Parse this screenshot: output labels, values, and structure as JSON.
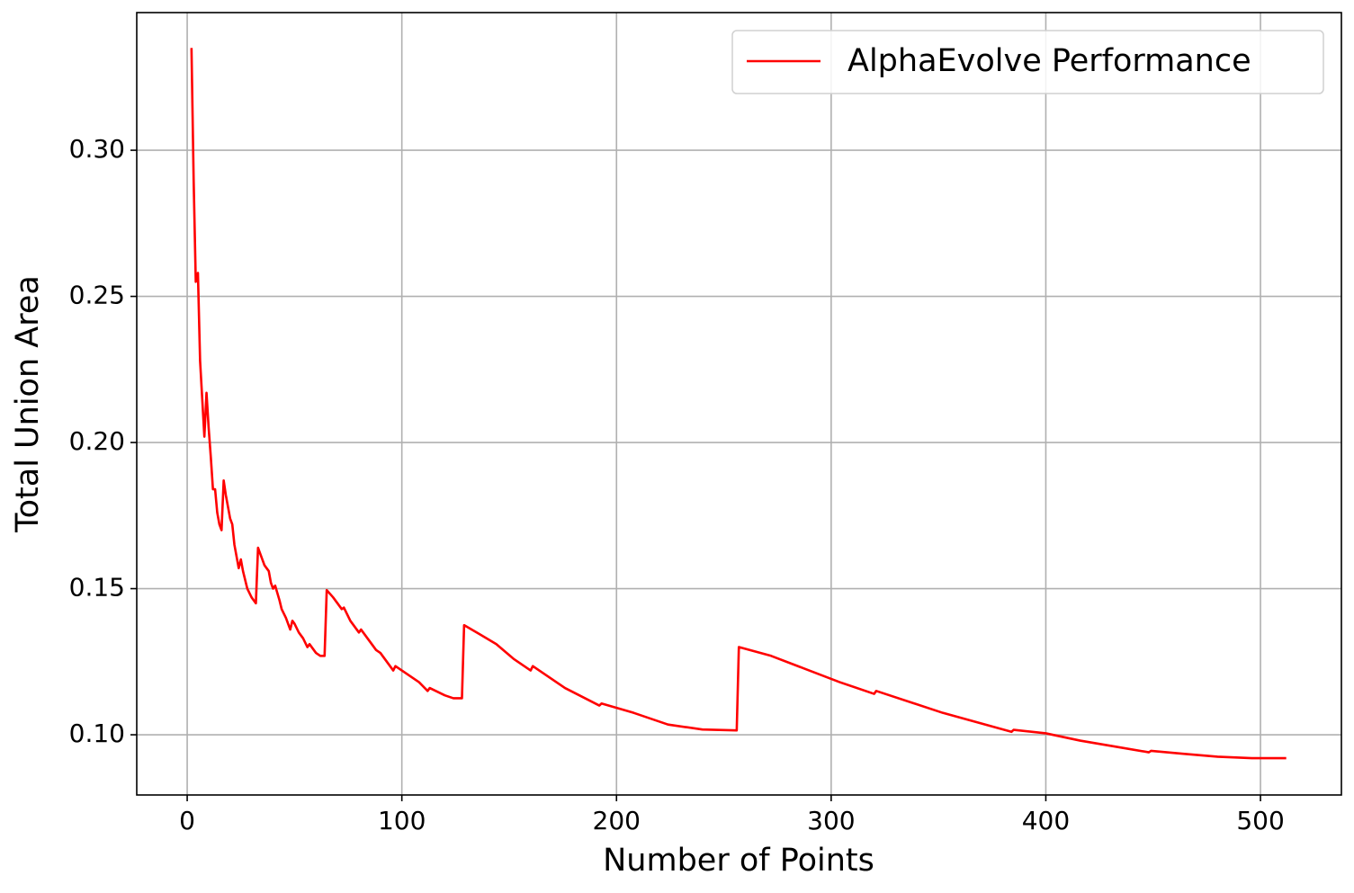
{
  "chart_data": {
    "type": "line",
    "xlabel": "Number of Points",
    "ylabel": "Total Union Area",
    "x": [
      2,
      3,
      4,
      5,
      6,
      7,
      8,
      9,
      10,
      11,
      12,
      13,
      14,
      15,
      16,
      17,
      18,
      20,
      21,
      22,
      24,
      25,
      26,
      28,
      30,
      32,
      33,
      34,
      36,
      38,
      39,
      40,
      41,
      43,
      44,
      46,
      48,
      49,
      50,
      52,
      54,
      56,
      57,
      60,
      62,
      64,
      65,
      68,
      70,
      72,
      73,
      76,
      80,
      81,
      84,
      88,
      90,
      96,
      97,
      100,
      104,
      108,
      112,
      113,
      120,
      124,
      128,
      129,
      136,
      144,
      152,
      160,
      161,
      176,
      192,
      193,
      208,
      224,
      240,
      256,
      257,
      272,
      288,
      304,
      320,
      321,
      352,
      384,
      385,
      400,
      416,
      432,
      448,
      449,
      464,
      480,
      496,
      512
    ],
    "series": [
      {
        "name": "AlphaEvolve Performance",
        "color": "#ff0000",
        "values": [
          0.335,
          0.29,
          0.255,
          0.258,
          0.228,
          0.215,
          0.202,
          0.217,
          0.205,
          0.195,
          0.184,
          0.184,
          0.176,
          0.172,
          0.17,
          0.187,
          0.182,
          0.174,
          0.172,
          0.165,
          0.157,
          0.16,
          0.156,
          0.15,
          0.147,
          0.145,
          0.164,
          0.162,
          0.158,
          0.156,
          0.152,
          0.15,
          0.151,
          0.146,
          0.143,
          0.14,
          0.136,
          0.139,
          0.138,
          0.135,
          0.133,
          0.13,
          0.131,
          0.128,
          0.127,
          0.127,
          0.1495,
          0.147,
          0.145,
          0.143,
          0.1435,
          0.139,
          0.135,
          0.136,
          0.133,
          0.129,
          0.128,
          0.122,
          0.1235,
          0.122,
          0.12,
          0.118,
          0.115,
          0.116,
          0.1135,
          0.1125,
          0.1125,
          0.1375,
          0.1345,
          0.131,
          0.126,
          0.122,
          0.1235,
          0.116,
          0.11,
          0.1107,
          0.1075,
          0.1035,
          0.1018,
          0.1015,
          0.13,
          0.127,
          0.1225,
          0.118,
          0.114,
          0.115,
          0.1075,
          0.101,
          0.1017,
          0.1005,
          0.098,
          0.096,
          0.094,
          0.0945,
          0.0935,
          0.0925,
          0.092,
          0.092
        ]
      }
    ],
    "xlim": [
      -23.5,
      537.7
    ],
    "ylim": [
      0.0794,
      0.3471
    ],
    "xticks": [
      0,
      100,
      200,
      300,
      400,
      500
    ],
    "yticks": [
      {
        "value": 0.1,
        "label": "0.10"
      },
      0.15,
      {
        "value": 0.2,
        "label": "0.20"
      },
      0.25,
      {
        "value": 0.3,
        "label": "0.30"
      }
    ],
    "grid": true,
    "legend": "upper right"
  }
}
